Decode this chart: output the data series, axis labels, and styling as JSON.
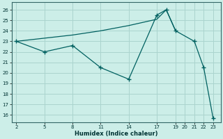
{
  "xlabel": "Humidex (Indice chaleur)",
  "background_color": "#cceee8",
  "grid_color": "#aad4ce",
  "line_color": "#006060",
  "line1_x": [
    2,
    5,
    8,
    11,
    14,
    17,
    18,
    19,
    21,
    22,
    23
  ],
  "line1_y": [
    23.0,
    22.0,
    22.6,
    20.5,
    19.4,
    25.5,
    26.0,
    24.0,
    23.0,
    20.5,
    15.7
  ],
  "line2_x": [
    2,
    5,
    8,
    11,
    14,
    17,
    18,
    19
  ],
  "line2_y": [
    23.0,
    23.3,
    23.6,
    24.0,
    24.5,
    25.1,
    26.0,
    24.0
  ],
  "xticks": [
    2,
    5,
    8,
    11,
    14,
    17,
    19,
    20,
    21,
    22,
    23
  ],
  "yticks": [
    16,
    17,
    18,
    19,
    20,
    21,
    22,
    23,
    24,
    25,
    26
  ],
  "xlim": [
    1.5,
    23.8
  ],
  "ylim": [
    15.3,
    26.7
  ]
}
